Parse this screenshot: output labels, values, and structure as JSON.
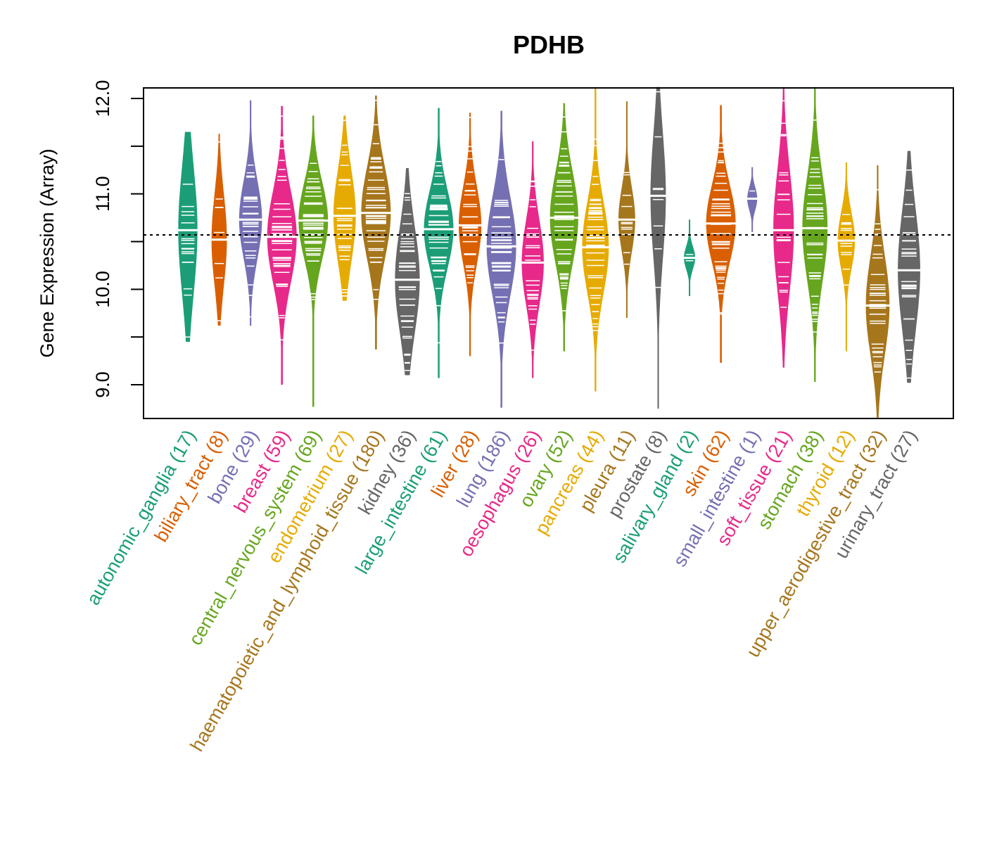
{
  "chart_data": {
    "type": "violin",
    "title": "PDHB",
    "xlabel": "",
    "ylabel": "Gene Expression (Array)",
    "ylim": [
      8.65,
      12.1
    ],
    "yticks": [
      9.0,
      9.5,
      10.0,
      10.5,
      11.0,
      11.5,
      12.0
    ],
    "ytick_labels": [
      "9.0",
      "",
      "10.0",
      "",
      "11.0",
      "",
      "12.0"
    ],
    "reference_line": 10.57,
    "grid": false,
    "legend": "none",
    "categories": [
      {
        "name": "autonomic_ganglia",
        "n": 17,
        "label": "autonomic_ganglia (17)",
        "color": "#1B9E77",
        "min": 9.45,
        "max": 11.65,
        "median": 10.62,
        "q1": 10.05,
        "q3": 10.95
      },
      {
        "name": "biliary_tract",
        "n": 8,
        "label": "biliary_tract (8)",
        "color": "#D95F02",
        "min": 9.62,
        "max": 11.63,
        "median": 10.52,
        "q1": 10.15,
        "q3": 10.8
      },
      {
        "name": "bone",
        "n": 29,
        "label": "bone (29)",
        "color": "#7570B3",
        "min": 9.62,
        "max": 11.98,
        "median": 10.73,
        "q1": 10.45,
        "q3": 11.0
      },
      {
        "name": "breast",
        "n": 59,
        "label": "breast (59)",
        "color": "#E7298A",
        "min": 9.0,
        "max": 11.92,
        "median": 10.55,
        "q1": 10.2,
        "q3": 10.85
      },
      {
        "name": "central_nervous_system",
        "n": 69,
        "label": "central_nervous_system (69)",
        "color": "#66A61E",
        "min": 8.77,
        "max": 11.82,
        "median": 10.72,
        "q1": 10.4,
        "q3": 10.95
      },
      {
        "name": "endometrium",
        "n": 27,
        "label": "endometrium (27)",
        "color": "#E6AB02",
        "min": 9.88,
        "max": 11.82,
        "median": 10.77,
        "q1": 10.4,
        "q3": 11.05
      },
      {
        "name": "haematopoietic_and_lymphoid_tissue",
        "n": 180,
        "label": "haematopoietic_and_lymphoid_tissue (180)",
        "color": "#A6761D",
        "min": 9.37,
        "max": 12.03,
        "median": 10.8,
        "q1": 10.45,
        "q3": 11.1
      },
      {
        "name": "kidney",
        "n": 36,
        "label": "kidney (36)",
        "color": "#666666",
        "min": 9.1,
        "max": 11.27,
        "median": 10.1,
        "q1": 9.7,
        "q3": 10.45
      },
      {
        "name": "large_intestine",
        "n": 61,
        "label": "large_intestine (61)",
        "color": "#1B9E77",
        "min": 9.07,
        "max": 11.9,
        "median": 10.63,
        "q1": 10.35,
        "q3": 10.9
      },
      {
        "name": "liver",
        "n": 28,
        "label": "liver (28)",
        "color": "#D95F02",
        "min": 9.3,
        "max": 11.85,
        "median": 10.67,
        "q1": 10.4,
        "q3": 10.95
      },
      {
        "name": "lung",
        "n": 186,
        "label": "lung (186)",
        "color": "#7570B3",
        "min": 8.76,
        "max": 11.87,
        "median": 10.45,
        "q1": 10.1,
        "q3": 10.8
      },
      {
        "name": "oesophagus",
        "n": 26,
        "label": "oesophagus (26)",
        "color": "#E7298A",
        "min": 9.07,
        "max": 11.55,
        "median": 10.28,
        "q1": 9.95,
        "q3": 10.55
      },
      {
        "name": "ovary",
        "n": 52,
        "label": "ovary (52)",
        "color": "#66A61E",
        "min": 9.35,
        "max": 11.95,
        "median": 10.75,
        "q1": 10.4,
        "q3": 11.05
      },
      {
        "name": "pancreas",
        "n": 44,
        "label": "pancreas (44)",
        "color": "#E6AB02",
        "min": 8.93,
        "max": 12.12,
        "median": 10.44,
        "q1": 10.05,
        "q3": 10.7
      },
      {
        "name": "pleura",
        "n": 11,
        "label": "pleura (11)",
        "color": "#A6761D",
        "min": 9.7,
        "max": 11.97,
        "median": 10.73,
        "q1": 10.45,
        "q3": 10.9
      },
      {
        "name": "prostate",
        "n": 8,
        "label": "prostate (8)",
        "color": "#666666",
        "min": 8.75,
        "max": 12.12,
        "median": 10.98,
        "q1": 10.4,
        "q3": 11.3
      },
      {
        "name": "salivary_gland",
        "n": 2,
        "label": "salivary_gland (2)",
        "color": "#1B9E77",
        "min": 9.93,
        "max": 10.73,
        "median": 10.33,
        "q1": 10.28,
        "q3": 10.38
      },
      {
        "name": "skin",
        "n": 62,
        "label": "skin (62)",
        "color": "#D95F02",
        "min": 9.23,
        "max": 11.93,
        "median": 10.69,
        "q1": 10.4,
        "q3": 10.95
      },
      {
        "name": "small_intestine",
        "n": 1,
        "label": "small_intestine (1)",
        "color": "#7570B3",
        "min": 10.6,
        "max": 11.28,
        "median": 10.95,
        "q1": 10.95,
        "q3": 10.95
      },
      {
        "name": "soft_tissue",
        "n": 21,
        "label": "soft_tissue (21)",
        "color": "#E7298A",
        "min": 9.18,
        "max": 12.12,
        "median": 10.62,
        "q1": 10.1,
        "q3": 10.95
      },
      {
        "name": "stomach",
        "n": 38,
        "label": "stomach (38)",
        "color": "#66A61E",
        "min": 9.03,
        "max": 12.12,
        "median": 10.64,
        "q1": 10.2,
        "q3": 10.95
      },
      {
        "name": "thyroid",
        "n": 12,
        "label": "thyroid (12)",
        "color": "#E6AB02",
        "min": 9.35,
        "max": 11.33,
        "median": 10.51,
        "q1": 10.3,
        "q3": 10.7
      },
      {
        "name": "upper_aerodigestive_tract",
        "n": 32,
        "label": "upper_aerodigestive_tract (32)",
        "color": "#A6761D",
        "min": 8.65,
        "max": 11.3,
        "median": 9.83,
        "q1": 9.5,
        "q3": 10.2
      },
      {
        "name": "urinary_tract",
        "n": 27,
        "label": "urinary_tract (27)",
        "color": "#666666",
        "min": 9.02,
        "max": 11.45,
        "median": 10.2,
        "q1": 9.8,
        "q3": 10.65
      }
    ]
  }
}
